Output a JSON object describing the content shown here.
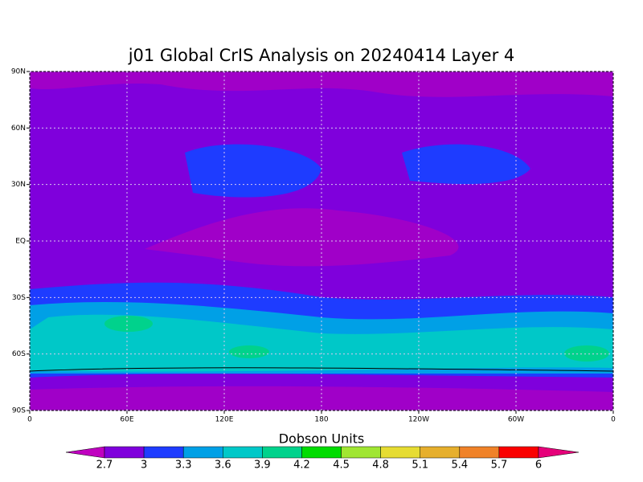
{
  "chart_data": {
    "type": "map",
    "title": "j01 Global CrIS Analysis on 20240414 Layer 4",
    "xlim": [
      0,
      360
    ],
    "ylim": [
      -90,
      90
    ],
    "xticks": [
      0,
      {
        "value": 60,
        "label": "60E"
      },
      {
        "value": 120,
        "label": "120E"
      },
      180,
      {
        "value": 240,
        "label": "120W"
      },
      {
        "value": 300,
        "label": "60W"
      },
      {
        "value": 360,
        "label": "0"
      }
    ],
    "yticks": [
      {
        "value": 90,
        "label": "90N"
      },
      {
        "value": 60,
        "label": "60N"
      },
      {
        "value": 30,
        "label": "30N"
      },
      {
        "value": 0,
        "label": "EQ"
      },
      {
        "value": -30,
        "label": "30S"
      },
      {
        "value": -60,
        "label": "60S"
      },
      {
        "value": -90,
        "label": "90S"
      }
    ],
    "grid": true,
    "colorbar": {
      "label": "Dobson Units",
      "ticks": [
        2.7,
        3,
        3.3,
        3.6,
        3.9,
        4.2,
        4.5,
        4.8,
        5.1,
        5.4,
        5.7,
        6
      ],
      "colors": [
        "#c000c0",
        "#7f00dc",
        "#1e3cff",
        "#00a0e6",
        "#00c8c8",
        "#00d28c",
        "#00dc00",
        "#a0e632",
        "#e6dc32",
        "#e6af2d",
        "#f08228",
        "#fa0000",
        "#e6007a"
      ]
    }
  }
}
